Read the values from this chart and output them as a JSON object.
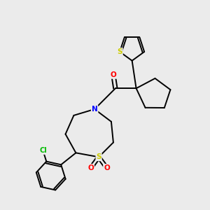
{
  "background_color": "#ebebeb",
  "atom_colors": {
    "S": "#cccc00",
    "N": "#0000ff",
    "O": "#ff0000",
    "Cl": "#00bb00",
    "C": "#000000"
  },
  "figsize": [
    3.0,
    3.0
  ],
  "dpi": 100
}
